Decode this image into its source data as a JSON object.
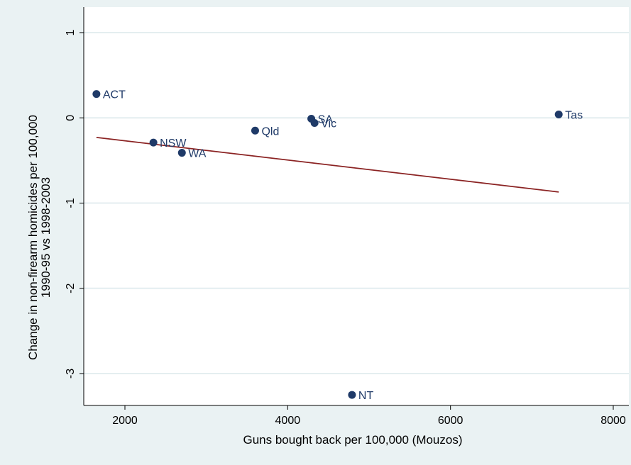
{
  "chart_data": {
    "type": "scatter",
    "xlabel": "Guns bought back per 100,000 (Mouzos)",
    "ylabel_lines": [
      "Change in non-firearm homicides per 100,000",
      "1990-95 vs 1998-2003"
    ],
    "xlim": [
      1500,
      8000
    ],
    "ylim": [
      -3.35,
      1.0
    ],
    "x_ticks": [
      2000,
      4000,
      6000,
      8000
    ],
    "y_ticks": [
      1,
      0,
      -1,
      -2,
      -3
    ],
    "grid": "horizontal",
    "points": [
      {
        "label": "ACT",
        "x": 1650,
        "y": 0.28
      },
      {
        "label": "NSW",
        "x": 2350,
        "y": -0.29
      },
      {
        "label": "WA",
        "x": 2700,
        "y": -0.41
      },
      {
        "label": "Qld",
        "x": 3600,
        "y": -0.15
      },
      {
        "label": "SA",
        "x": 4290,
        "y": -0.01
      },
      {
        "label": "Vic",
        "x": 4330,
        "y": -0.06
      },
      {
        "label": "NT",
        "x": 4790,
        "y": -3.25
      },
      {
        "label": "Tas",
        "x": 7330,
        "y": 0.04
      }
    ],
    "fit_line": {
      "x": [
        1650,
        7330
      ],
      "y": [
        -0.23,
        -0.87
      ]
    },
    "colors": {
      "points": "#1f3a68",
      "line": "#8b2323",
      "grid": "#e4eef0",
      "background": "#eaf2f3",
      "plot": "#ffffff"
    }
  }
}
